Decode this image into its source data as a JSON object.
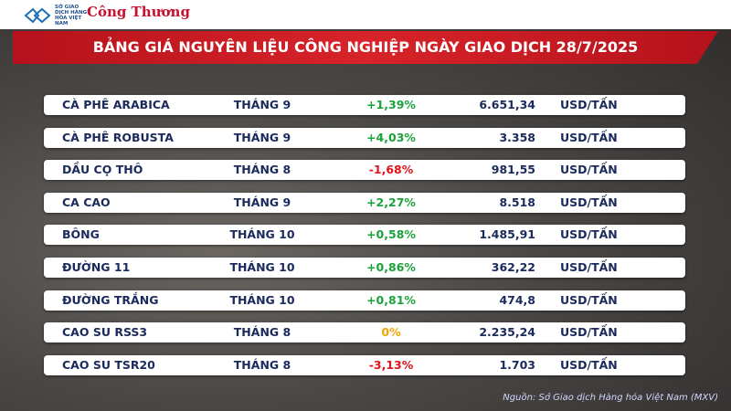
{
  "header": {
    "logo_text": "SỞ GIAO DỊCH HÀNG HÓA VIỆT NAM",
    "brand": "Công Thương",
    "title": "BẢNG GIÁ NGUYÊN LIỆU CÔNG NGHIỆP NGÀY GIAO DỊCH 28/7/2025"
  },
  "table": {
    "rows": [
      [
        "CÀ PHÊ ARABICA",
        "THÁNG 9",
        "+1,39%",
        "6.651,34",
        "USD/TẤN"
      ],
      [
        "CÀ PHÊ ROBUSTA",
        "THÁNG 9",
        "+4,03%",
        "3.358",
        "USD/TẤN"
      ],
      [
        "DẦU CỌ THÔ",
        "THÁNG 8",
        "-1,68%",
        "981,55",
        "USD/TẤN"
      ],
      [
        "CA CAO",
        "THÁNG 9",
        "+2,27%",
        "8.518",
        "USD/TẤN"
      ],
      [
        "BÔNG",
        "THÁNG 10",
        "+0,58%",
        "1.485,91",
        "USD/TẤN"
      ],
      [
        "ĐƯỜNG 11",
        "THÁNG 10",
        "+0,86%",
        "362,22",
        "USD/TẤN"
      ],
      [
        "ĐƯỜNG TRẮNG",
        "THÁNG 10",
        "+0,81%",
        "474,8",
        "USD/TẤN"
      ],
      [
        "CAO SU RSS3",
        "THÁNG 8",
        "0%",
        "2.235,24",
        "USD/TẤN"
      ],
      [
        "CAO SU TSR20",
        "THÁNG 8",
        "-3,13%",
        "1.703",
        "USD/TẤN"
      ]
    ]
  },
  "footer": {
    "source": "Nguồn: Sở Giao dịch Hàng hóa Việt Nam (MXV)"
  }
}
